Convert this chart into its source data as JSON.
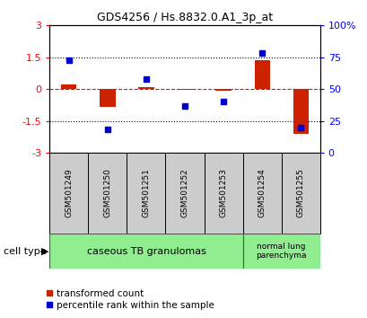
{
  "title": "GDS4256 / Hs.8832.0.A1_3p_at",
  "samples": [
    "GSM501249",
    "GSM501250",
    "GSM501251",
    "GSM501252",
    "GSM501253",
    "GSM501254",
    "GSM501255"
  ],
  "red_values": [
    0.2,
    -0.85,
    0.1,
    -0.02,
    -0.1,
    1.35,
    -2.1
  ],
  "blue_values": [
    73,
    18,
    58,
    37,
    40,
    78,
    20
  ],
  "ylim_left": [
    -3,
    3
  ],
  "ylim_right": [
    0,
    100
  ],
  "yticks_left": [
    -3,
    -1.5,
    0,
    1.5,
    3
  ],
  "yticks_right": [
    0,
    25,
    50,
    75,
    100
  ],
  "ytick_labels_right": [
    "0",
    "25",
    "50",
    "75",
    "100%"
  ],
  "group1_label": "caseous TB granulomas",
  "group2_label": "normal lung\nparenchyma",
  "group1_color": "#90EE90",
  "group2_color": "#90EE90",
  "cell_type_label": "cell type",
  "legend_red": "transformed count",
  "legend_blue": "percentile rank within the sample",
  "bar_width": 0.4,
  "red_color": "#CC2200",
  "blue_color": "#0000CC",
  "bg_color": "#FFFFFF",
  "plot_bg_color": "#FFFFFF",
  "sample_box_color": "#CCCCCC",
  "title_fontsize": 9,
  "axis_fontsize": 8,
  "sample_fontsize": 6.5,
  "legend_fontsize": 7.5,
  "group_fontsize": 8,
  "group2_fontsize": 6.5
}
